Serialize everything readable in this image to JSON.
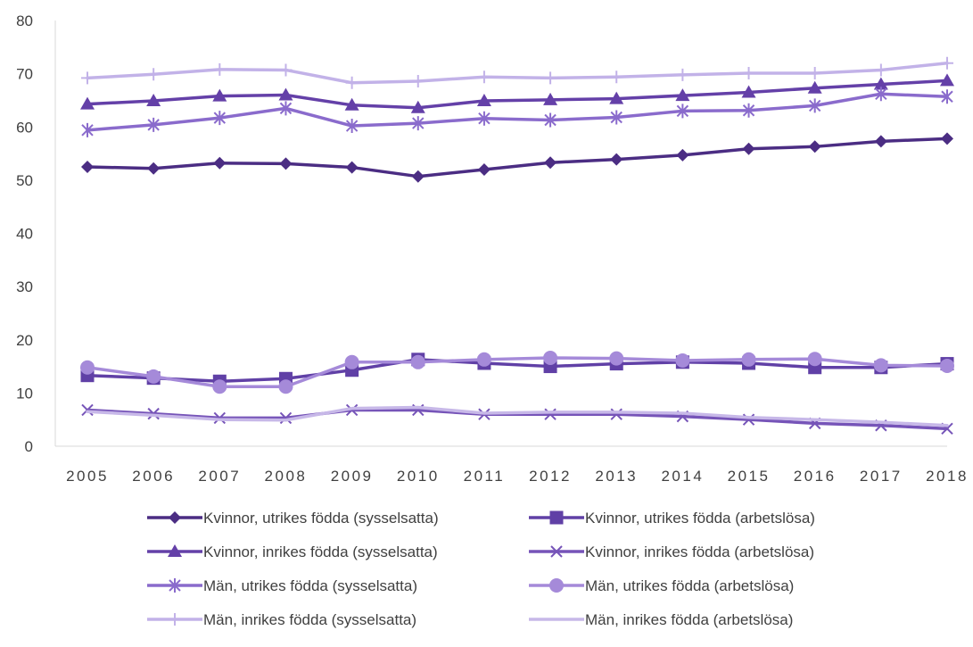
{
  "chart_data": {
    "type": "line",
    "title": "",
    "xlabel": "",
    "ylabel": "",
    "ylim": [
      0,
      80
    ],
    "yticks": [
      "0",
      "10",
      "20",
      "30",
      "40",
      "50",
      "60",
      "70",
      "80"
    ],
    "grid": false,
    "legend_position": "bottom",
    "x": [
      "2005",
      "2006",
      "2007",
      "2008",
      "2009",
      "2010",
      "2011",
      "2012",
      "2013",
      "2014",
      "2015",
      "2016",
      "2017",
      "2018"
    ],
    "series": [
      {
        "name": "Kvinnor, utrikes födda (sysselsatta)",
        "color": "#4b2d83",
        "marker": "diamond",
        "values": [
          52.5,
          52.2,
          53.2,
          53.1,
          52.4,
          50.7,
          52.0,
          53.3,
          53.9,
          54.7,
          55.9,
          56.3,
          57.3,
          57.8
        ]
      },
      {
        "name": "Kvinnor, utrikes födda (arbetslösa)",
        "color": "#6040a6",
        "marker": "square",
        "values": [
          13.3,
          12.8,
          12.2,
          12.7,
          14.3,
          16.3,
          15.6,
          15.0,
          15.5,
          15.8,
          15.6,
          14.8,
          14.8,
          15.5
        ]
      },
      {
        "name": "Kvinnor, inrikes födda (sysselsatta)",
        "color": "#6440a8",
        "marker": "triangle",
        "values": [
          64.3,
          64.9,
          65.8,
          66.0,
          64.1,
          63.6,
          64.9,
          65.1,
          65.3,
          65.9,
          66.5,
          67.3,
          68.0,
          68.7
        ]
      },
      {
        "name": "Kvinnor, inrikes födda (arbetslösa)",
        "color": "#7654b8",
        "marker": "x",
        "values": [
          6.8,
          6.1,
          5.3,
          5.3,
          6.8,
          6.8,
          6.0,
          6.0,
          6.0,
          5.6,
          5.0,
          4.3,
          3.9,
          3.3
        ]
      },
      {
        "name": "Män, utrikes födda (sysselsatta)",
        "color": "#8a6bcc",
        "marker": "star",
        "values": [
          59.4,
          60.4,
          61.7,
          63.5,
          60.2,
          60.7,
          61.6,
          61.3,
          61.8,
          63.0,
          63.1,
          64.0,
          66.2,
          65.7
        ]
      },
      {
        "name": "Män, utrikes födda (arbetslösa)",
        "color": "#a58ad9",
        "marker": "circle",
        "values": [
          14.8,
          13.1,
          11.2,
          11.2,
          15.8,
          15.8,
          16.3,
          16.6,
          16.5,
          16.1,
          16.3,
          16.4,
          15.2,
          15.1
        ]
      },
      {
        "name": "Män, inrikes födda (sysselsatta)",
        "color": "#c2b2e8",
        "marker": "plus",
        "values": [
          69.2,
          69.9,
          70.8,
          70.7,
          68.3,
          68.6,
          69.4,
          69.2,
          69.4,
          69.8,
          70.1,
          70.1,
          70.7,
          72.0
        ]
      },
      {
        "name": "Män, inrikes födda (arbetslösa)",
        "color": "#c7b8e8",
        "marker": "none",
        "values": [
          6.5,
          5.8,
          5.0,
          4.9,
          7.1,
          7.3,
          6.2,
          6.4,
          6.4,
          6.2,
          5.4,
          5.0,
          4.5,
          3.9
        ]
      }
    ]
  }
}
